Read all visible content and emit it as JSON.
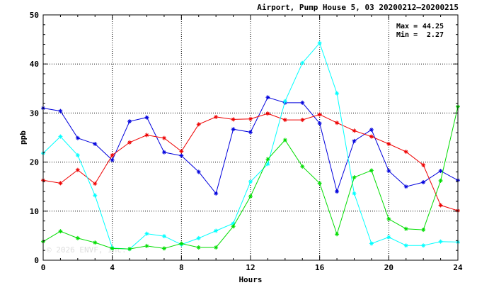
{
  "header": {
    "title": "Airport, Pump House 5, 03 20200212–20200215"
  },
  "stats": {
    "max_label": "Max =",
    "max_value": "44.25",
    "min_label": "Min =",
    "min_value": "2.27"
  },
  "watermark": "© 2026  ENVF, Inc.",
  "chart_data": {
    "type": "line",
    "title": "Airport, Pump House 5, 03 20200212–20200215",
    "xlabel": "Hours",
    "ylabel": "ppb",
    "xlim": [
      0,
      24
    ],
    "ylim": [
      0,
      50
    ],
    "x_ticks": [
      0,
      4,
      8,
      12,
      16,
      20,
      24
    ],
    "y_ticks": [
      0,
      10,
      20,
      30,
      40,
      50
    ],
    "grid": true,
    "x": [
      0,
      1,
      2,
      3,
      4,
      5,
      6,
      7,
      8,
      9,
      10,
      11,
      12,
      13,
      14,
      15,
      16,
      17,
      18,
      19,
      20,
      21,
      22,
      23,
      24
    ],
    "series": [
      {
        "color": "#0000dd",
        "values": [
          31.0,
          30.4,
          24.9,
          23.7,
          20.4,
          28.3,
          29.1,
          22.0,
          21.3,
          18.0,
          13.6,
          26.7,
          26.1,
          33.2,
          32.1,
          32.1,
          27.9,
          14.0,
          24.3,
          26.6,
          18.2,
          15.0,
          15.9,
          18.2,
          16.3
        ]
      },
      {
        "color": "#ee0000",
        "values": [
          16.3,
          15.7,
          18.4,
          15.6,
          21.4,
          24.0,
          25.5,
          24.9,
          22.2,
          27.7,
          29.2,
          28.7,
          28.8,
          29.9,
          28.6,
          28.6,
          29.7,
          28.0,
          26.4,
          25.2,
          23.7,
          22.1,
          19.4,
          11.2,
          10.1
        ]
      },
      {
        "color": "#00ffff",
        "values": [
          21.8,
          25.2,
          21.4,
          13.2,
          2.5,
          2.27,
          5.4,
          4.9,
          3.2,
          4.5,
          6.0,
          7.5,
          16.0,
          19.6,
          32.4,
          40.2,
          44.25,
          34.0,
          13.6,
          3.4,
          4.7,
          3.0,
          3.0,
          3.8,
          3.7
        ]
      },
      {
        "color": "#00dd00",
        "values": [
          3.8,
          5.9,
          4.5,
          3.6,
          2.4,
          2.3,
          2.9,
          2.4,
          3.4,
          2.6,
          2.6,
          6.9,
          13.0,
          20.6,
          24.5,
          19.1,
          15.7,
          5.3,
          16.9,
          18.3,
          8.4,
          6.4,
          6.2,
          16.2,
          31.3
        ]
      }
    ]
  }
}
